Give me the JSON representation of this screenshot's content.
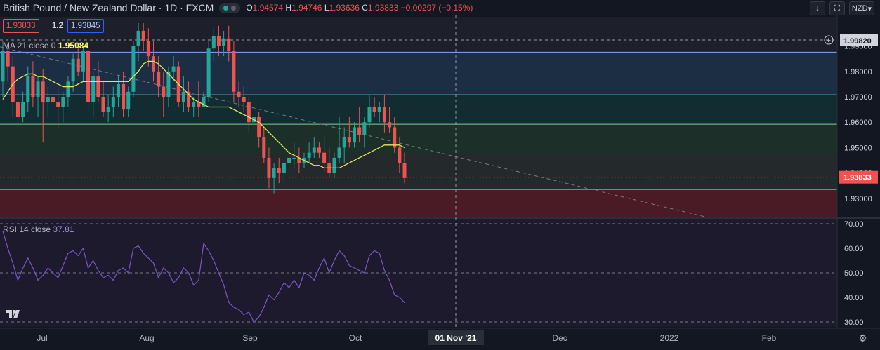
{
  "header": {
    "symbol": "British Pound / New Zealand Dollar · 1D · FXCM",
    "open_label": "O",
    "open": "1.94574",
    "high_label": "H",
    "high": "1.94746",
    "low_label": "L",
    "low": "1.93636",
    "close_label": "C",
    "close": "1.93833",
    "change": "−0.00297 (−0.15%)",
    "currency_button": "NZD"
  },
  "quotes": {
    "bid": "1.93833",
    "spread": "1.2",
    "ask": "1.93845"
  },
  "indicators": {
    "ma": {
      "label": "MA 21 close 0",
      "value": "1.95084"
    },
    "rsi": {
      "label": "RSI 14 close",
      "value": "37.81"
    }
  },
  "colors": {
    "up": "#26a69a",
    "down": "#ef5350",
    "ma": "#e6e65a",
    "rsi": "#7e57c2",
    "background": "#131722"
  },
  "chart_data": [
    {
      "type": "candlestick",
      "title": "British Pound / New Zealand Dollar",
      "ylim": [
        1.9225,
        2.0015
      ],
      "y_ticks": [
        1.93,
        1.94,
        1.95,
        1.96,
        1.97,
        1.98,
        1.99
      ],
      "y_tick_labels": [
        "1.93000",
        "1.94000",
        "1.95000",
        "1.96000",
        "1.97000",
        "1.98000",
        "1.99000"
      ],
      "current_price_label": "1.93833",
      "crosshair_price_label": "1.99820",
      "x_tick_labels": [
        "Jul",
        "Aug",
        "Sep",
        "Oct",
        "01 Nov '21",
        "Dec",
        "2022",
        "Feb"
      ],
      "horizontal_levels": [
        1.9334,
        1.9475,
        1.9592,
        1.9708,
        1.9876
      ],
      "trendline": {
        "start": [
          1.9897,
          "2021-06-19"
        ],
        "end": [
          1.9225,
          "2022-01-06"
        ]
      },
      "candles_ohlc": [
        [
          1.976,
          1.992,
          1.97,
          1.988
        ],
        [
          1.988,
          1.99,
          1.976,
          1.982
        ],
        [
          1.982,
          1.986,
          1.962,
          1.968
        ],
        [
          1.968,
          1.974,
          1.958,
          1.962
        ],
        [
          1.962,
          1.972,
          1.96,
          1.968
        ],
        [
          1.968,
          1.982,
          1.964,
          1.978
        ],
        [
          1.978,
          1.984,
          1.966,
          1.97
        ],
        [
          1.97,
          1.978,
          1.962,
          1.976
        ],
        [
          1.976,
          1.981,
          1.952,
          1.968
        ],
        [
          1.968,
          1.974,
          1.962,
          1.97
        ],
        [
          1.97,
          1.979,
          1.966,
          1.968
        ],
        [
          1.968,
          1.973,
          1.958,
          1.966
        ],
        [
          1.966,
          1.972,
          1.96,
          1.97
        ],
        [
          1.97,
          1.978,
          1.966,
          1.976
        ],
        [
          1.976,
          1.987,
          1.972,
          1.985
        ],
        [
          1.985,
          1.989,
          1.978,
          1.98
        ],
        [
          1.98,
          1.99,
          1.976,
          1.988
        ],
        [
          1.988,
          1.99,
          1.964,
          1.968
        ],
        [
          1.968,
          1.98,
          1.962,
          1.978
        ],
        [
          1.978,
          1.984,
          1.968,
          1.97
        ],
        [
          1.97,
          1.976,
          1.962,
          1.964
        ],
        [
          1.964,
          1.971,
          1.96,
          1.966
        ],
        [
          1.966,
          1.974,
          1.962,
          1.97
        ],
        [
          1.97,
          1.978,
          1.966,
          1.975
        ],
        [
          1.975,
          1.98,
          1.962,
          1.965
        ],
        [
          1.965,
          1.974,
          1.962,
          1.972
        ],
        [
          1.972,
          1.992,
          1.97,
          1.99
        ],
        [
          1.99,
          1.999,
          1.984,
          1.996
        ],
        [
          1.996,
          1.999,
          1.988,
          1.992
        ],
        [
          1.992,
          1.997,
          1.982,
          1.986
        ],
        [
          1.986,
          1.992,
          1.976,
          1.98
        ],
        [
          1.98,
          1.986,
          1.97,
          1.974
        ],
        [
          1.974,
          1.98,
          1.962,
          1.97
        ],
        [
          1.97,
          1.982,
          1.966,
          1.98
        ],
        [
          1.98,
          1.986,
          1.976,
          1.982
        ],
        [
          1.982,
          1.984,
          1.966,
          1.968
        ],
        [
          1.968,
          1.978,
          1.964,
          1.972
        ],
        [
          1.972,
          1.976,
          1.964,
          1.966
        ],
        [
          1.966,
          1.97,
          1.962,
          1.968
        ],
        [
          1.968,
          1.976,
          1.962,
          1.966
        ],
        [
          1.966,
          1.972,
          1.966,
          1.97
        ],
        [
          1.97,
          1.992,
          1.968,
          1.989
        ],
        [
          1.989,
          1.997,
          1.984,
          1.994
        ],
        [
          1.994,
          1.998,
          1.986,
          1.99
        ],
        [
          1.99,
          1.996,
          1.986,
          1.993
        ],
        [
          1.993,
          1.998,
          1.984,
          1.988
        ],
        [
          1.988,
          1.992,
          1.968,
          1.972
        ],
        [
          1.972,
          1.976,
          1.966,
          1.97
        ],
        [
          1.97,
          1.974,
          1.964,
          1.968
        ],
        [
          1.968,
          1.97,
          1.956,
          1.96
        ],
        [
          1.96,
          1.964,
          1.958,
          1.962
        ],
        [
          1.962,
          1.964,
          1.95,
          1.954
        ],
        [
          1.954,
          1.958,
          1.944,
          1.946
        ],
        [
          1.946,
          1.95,
          1.934,
          1.938
        ],
        [
          1.938,
          1.944,
          1.932,
          1.942
        ],
        [
          1.942,
          1.946,
          1.936,
          1.94
        ],
        [
          1.94,
          1.945,
          1.936,
          1.944
        ],
        [
          1.944,
          1.948,
          1.94,
          1.946
        ],
        [
          1.946,
          1.952,
          1.942,
          1.946
        ],
        [
          1.946,
          1.95,
          1.94,
          1.944
        ],
        [
          1.944,
          1.948,
          1.942,
          1.946
        ],
        [
          1.946,
          1.952,
          1.944,
          1.948
        ],
        [
          1.948,
          1.954,
          1.946,
          1.95
        ],
        [
          1.95,
          1.952,
          1.946,
          1.948
        ],
        [
          1.948,
          1.954,
          1.94,
          1.944
        ],
        [
          1.944,
          1.95,
          1.938,
          1.94
        ],
        [
          1.94,
          1.948,
          1.938,
          1.946
        ],
        [
          1.946,
          1.962,
          1.944,
          1.95
        ],
        [
          1.95,
          1.958,
          1.944,
          1.954
        ],
        [
          1.954,
          1.962,
          1.95,
          1.952
        ],
        [
          1.952,
          1.96,
          1.95,
          1.958
        ],
        [
          1.958,
          1.966,
          1.952,
          1.955
        ],
        [
          1.955,
          1.962,
          1.95,
          1.96
        ],
        [
          1.96,
          1.971,
          1.958,
          1.966
        ],
        [
          1.966,
          1.97,
          1.962,
          1.964
        ],
        [
          1.964,
          1.968,
          1.96,
          1.966
        ],
        [
          1.966,
          1.971,
          1.956,
          1.96
        ],
        [
          1.96,
          1.966,
          1.956,
          1.958
        ],
        [
          1.958,
          1.962,
          1.948,
          1.95
        ],
        [
          1.95,
          1.954,
          1.94,
          1.944
        ],
        [
          1.944,
          1.948,
          1.936,
          1.938
        ]
      ],
      "moving_average": [
        1.969,
        1.972,
        1.975,
        1.977,
        1.978,
        1.979,
        1.979,
        1.978,
        1.978,
        1.977,
        1.976,
        1.975,
        1.974,
        1.974,
        1.974,
        1.975,
        1.976,
        1.976,
        1.976,
        1.976,
        1.976,
        1.976,
        1.976,
        1.976,
        1.976,
        1.976,
        1.978,
        1.98,
        1.983,
        1.984,
        1.984,
        1.983,
        1.981,
        1.979,
        1.977,
        1.975,
        1.973,
        1.971,
        1.969,
        1.968,
        1.967,
        1.966,
        1.966,
        1.966,
        1.966,
        1.966,
        1.965,
        1.964,
        1.963,
        1.962,
        1.961,
        1.96,
        1.958,
        1.956,
        1.954,
        1.952,
        1.95,
        1.948,
        1.947,
        1.946,
        1.945,
        1.944,
        1.943,
        1.943,
        1.942,
        1.942,
        1.942,
        1.942,
        1.943,
        1.944,
        1.945,
        1.946,
        1.947,
        1.948,
        1.949,
        1.95,
        1.951,
        1.951,
        1.951,
        1.951,
        1.95
      ]
    },
    {
      "type": "line",
      "title": "RSI 14 close",
      "ylim": [
        28,
        72
      ],
      "y_ticks": [
        30,
        40,
        50,
        60,
        70
      ],
      "y_tick_labels": [
        "30.00",
        "40.00",
        "50.00",
        "60.00",
        "70.00"
      ],
      "dashed_levels": [
        30,
        50,
        70
      ],
      "series": [
        {
          "name": "RSI 14 close",
          "values": [
            67,
            60,
            54,
            47,
            52,
            56,
            52,
            47,
            49,
            52,
            50,
            48,
            53,
            58,
            59,
            57,
            60,
            52,
            55,
            51,
            48,
            49,
            47,
            51,
            52,
            50,
            60,
            61,
            58,
            56,
            54,
            48,
            52,
            50,
            46,
            48,
            52,
            50,
            45,
            47,
            62,
            59,
            55,
            50,
            45,
            38,
            36,
            35,
            33,
            34,
            30,
            32,
            36,
            41,
            39,
            42,
            46,
            44,
            47,
            44,
            50,
            49,
            47,
            52,
            56,
            50,
            55,
            59,
            57,
            53,
            52,
            51,
            50,
            57,
            59,
            58,
            51,
            47,
            41,
            40,
            37.81
          ]
        }
      ]
    }
  ]
}
